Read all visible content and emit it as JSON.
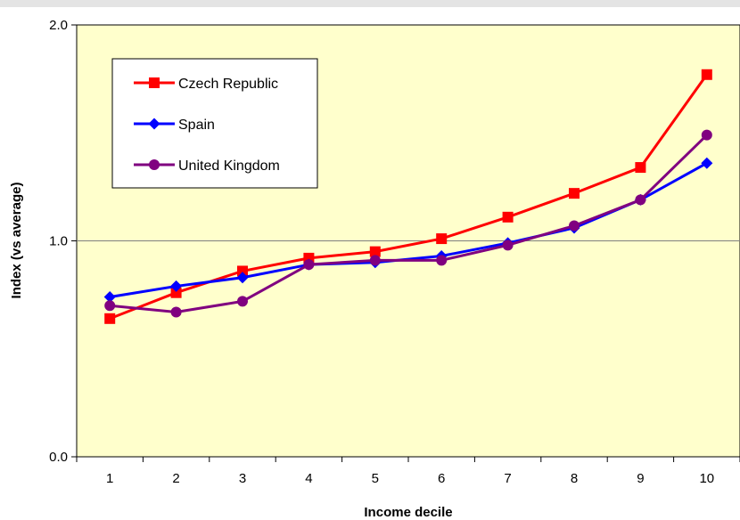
{
  "chart_data": {
    "type": "line",
    "title": "",
    "xlabel": "Income decile",
    "ylabel": "Index (vs average)",
    "categories": [
      "1",
      "2",
      "3",
      "4",
      "5",
      "6",
      "7",
      "8",
      "9",
      "10"
    ],
    "y_tick_labels": [
      "0.0",
      "1.0",
      "2.0"
    ],
    "ylim": [
      0,
      2
    ],
    "grid": "horizontal at 1.0",
    "legend_position": "top-left",
    "plot_background": "#ffffcc",
    "series": [
      {
        "name": "Czech Republic",
        "color": "#ff0000",
        "marker": "square",
        "values": [
          0.64,
          0.76,
          0.86,
          0.92,
          0.95,
          1.01,
          1.11,
          1.22,
          1.34,
          1.77
        ]
      },
      {
        "name": "Spain",
        "color": "#0000ff",
        "marker": "diamond",
        "values": [
          0.74,
          0.79,
          0.83,
          0.89,
          0.9,
          0.93,
          0.99,
          1.06,
          1.19,
          1.36
        ]
      },
      {
        "name": "United Kingdom",
        "color": "#800080",
        "marker": "circle",
        "values": [
          0.7,
          0.67,
          0.72,
          0.89,
          0.91,
          0.91,
          0.98,
          1.07,
          1.19,
          1.49
        ]
      }
    ]
  }
}
